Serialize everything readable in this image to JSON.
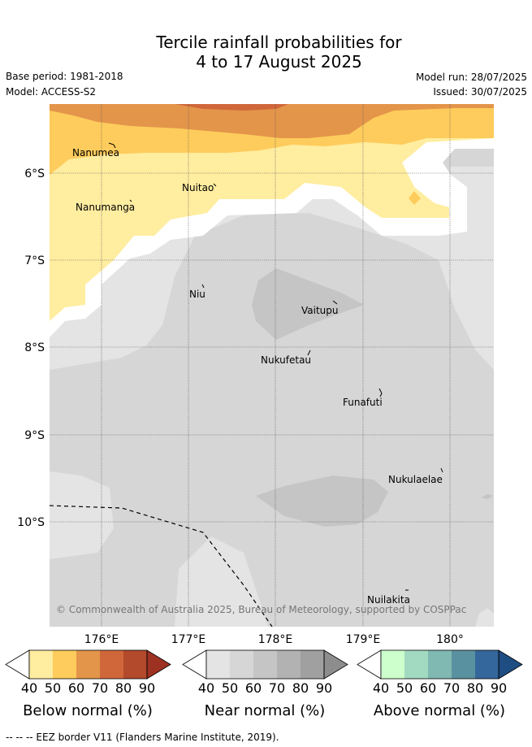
{
  "title": {
    "line1": "Tercile rainfall probabilities for",
    "line2": "4 to 17 August 2025"
  },
  "meta": {
    "base_period": "Base period: 1981-2018",
    "model": "Model: ACCESS-S2",
    "model_run": "Model run: 28/07/2025",
    "issued": "Issued: 30/07/2025"
  },
  "map": {
    "lon_labels": [
      "176°E",
      "177°E",
      "178°E",
      "179°E",
      "180°"
    ],
    "lat_labels": [
      "6°S",
      "7°S",
      "8°S",
      "9°S",
      "10°S"
    ],
    "copyright": "© Commonwealth of Australia 2025, Bureau of Meteorology, supported by COSPPac",
    "places": [
      "Nanumea",
      "Nuitao",
      "Nanumanga",
      "Niu",
      "Vaitupu",
      "Nukufetau",
      "Funafuti",
      "Nukulaelae",
      "Nuilakita"
    ]
  },
  "legends": {
    "ticks": [
      "40",
      "50",
      "60",
      "70",
      "80",
      "90"
    ],
    "below": {
      "title": "Below normal (%)",
      "colors": [
        "#ffffff",
        "#ffeda0",
        "#fecc5c",
        "#e3954a",
        "#d0673a",
        "#b24a2b",
        "#9e3222"
      ]
    },
    "near": {
      "title": "Near normal (%)",
      "colors": [
        "#ffffff",
        "#e4e4e4",
        "#d6d6d6",
        "#c5c5c5",
        "#b2b2b2",
        "#a0a0a0",
        "#8d8d8d"
      ]
    },
    "above": {
      "title": "Above normal (%)",
      "colors": [
        "#ffffff",
        "#ccffcc",
        "#a1d9c1",
        "#80b8b2",
        "#5a91a0",
        "#34679b",
        "#1e4d82"
      ]
    }
  },
  "footer": "--  --  -- EEZ border V11 (Flanders Marine Institute, 2019)."
}
